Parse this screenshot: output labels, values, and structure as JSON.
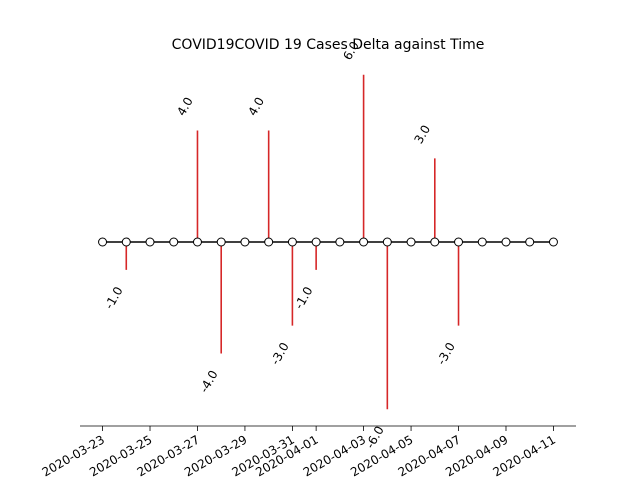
{
  "chart_data": {
    "type": "stem",
    "title": "COVID19COVID 19 Cases Delta against Time",
    "xlabel": "",
    "ylabel": "",
    "x_tick_labels": [
      "2020-03-23",
      "2020-03-25",
      "2020-03-27",
      "2020-03-29",
      "2020-03-31",
      "2020-04-01",
      "2020-04-03",
      "2020-04-05",
      "2020-04-07",
      "2020-04-09",
      "2020-04-11"
    ],
    "x": [
      "2020-03-23",
      "2020-03-24",
      "2020-03-25",
      "2020-03-26",
      "2020-03-27",
      "2020-03-28",
      "2020-03-29",
      "2020-03-30",
      "2020-03-31",
      "2020-04-01",
      "2020-04-02",
      "2020-04-03",
      "2020-04-04",
      "2020-04-05",
      "2020-04-06",
      "2020-04-07",
      "2020-04-08",
      "2020-04-09",
      "2020-04-10",
      "2020-04-11"
    ],
    "values": [
      0,
      -1,
      0,
      0,
      4,
      -4,
      0,
      4,
      -3,
      -1,
      0,
      6,
      -6,
      0,
      3,
      -3,
      0,
      0,
      0,
      0
    ],
    "data_labels": [
      {
        "date": "2020-03-24",
        "text": "-1.0"
      },
      {
        "date": "2020-03-27",
        "text": "4.0"
      },
      {
        "date": "2020-03-28",
        "text": "-4.0"
      },
      {
        "date": "2020-03-30",
        "text": "4.0"
      },
      {
        "date": "2020-03-31",
        "text": "-3.0"
      },
      {
        "date": "2020-04-01",
        "text": "-1.0"
      },
      {
        "date": "2020-04-03",
        "text": "6.0"
      },
      {
        "date": "2020-04-04",
        "text": "-6.0"
      },
      {
        "date": "2020-04-06",
        "text": "3.0"
      },
      {
        "date": "2020-04-07",
        "text": "-3.0"
      }
    ],
    "ylim": [
      -6.6,
      6.6
    ],
    "y_axis_visible": false,
    "grid": false,
    "stem_color": "#d62728",
    "baseline_color": "#000000",
    "marker_face": "#ffffff",
    "marker_edge": "#000000"
  }
}
